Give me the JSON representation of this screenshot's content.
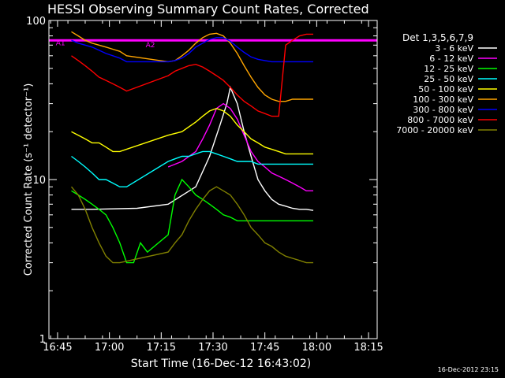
{
  "chart_data": {
    "type": "line",
    "title": "HESSI Observing Summary Count Rates, Corrected",
    "xlabel": "Start Time (16-Dec-12 16:43:02)",
    "ylabel": "Corrected Count Rate (s⁻¹ detector⁻¹)",
    "yscale": "log",
    "ylim": [
      1,
      100
    ],
    "xlim_minutes": [
      -0.5,
      94.5
    ],
    "x_ticks": [
      {
        "t": 2,
        "label": "16:45"
      },
      {
        "t": 17,
        "label": "17:00"
      },
      {
        "t": 32,
        "label": "17:15"
      },
      {
        "t": 47,
        "label": "17:30"
      },
      {
        "t": 62,
        "label": "17:45"
      },
      {
        "t": 77,
        "label": "18:00"
      },
      {
        "t": 92,
        "label": "18:15"
      }
    ],
    "y_ticks": [
      {
        "v": 1,
        "label": "1"
      },
      {
        "v": 10,
        "label": "10"
      },
      {
        "v": 100,
        "label": "100"
      }
    ],
    "legend_title": "Det 1,3,5,6,7,9",
    "legend_position": "right",
    "annotations": [
      {
        "text": "A1",
        "color": "#ff00ff",
        "t": 1.5,
        "v": 70
      },
      {
        "text": "A2",
        "color": "#ff00ff",
        "t": 27.5,
        "v": 68
      }
    ],
    "attenuator_level": 75,
    "series": [
      {
        "name": "3 - 6 keV",
        "color": "#ffffff",
        "points": [
          [
            6,
            6.5
          ],
          [
            12,
            6.5
          ],
          [
            25,
            6.6
          ],
          [
            34,
            7
          ],
          [
            42,
            9
          ],
          [
            46,
            14
          ],
          [
            49,
            22
          ],
          [
            51,
            30
          ],
          [
            52,
            38
          ],
          [
            54,
            30
          ],
          [
            56,
            20
          ],
          [
            58,
            14
          ],
          [
            60,
            10
          ],
          [
            62,
            8.5
          ],
          [
            64,
            7.5
          ],
          [
            66,
            7
          ],
          [
            68,
            6.8
          ],
          [
            70,
            6.6
          ],
          [
            72,
            6.5
          ],
          [
            74,
            6.5
          ],
          [
            76,
            6.4
          ]
        ]
      },
      {
        "name": "6 - 12 keV",
        "color": "#ff00ff",
        "points": [
          [
            34,
            12
          ],
          [
            38,
            13
          ],
          [
            42,
            15
          ],
          [
            44,
            18
          ],
          [
            46,
            22
          ],
          [
            48,
            28
          ],
          [
            50,
            30
          ],
          [
            52,
            28
          ],
          [
            54,
            24
          ],
          [
            56,
            19
          ],
          [
            58,
            15
          ],
          [
            60,
            13
          ],
          [
            62,
            12
          ],
          [
            64,
            11
          ],
          [
            66,
            10.5
          ],
          [
            68,
            10
          ],
          [
            70,
            9.5
          ],
          [
            72,
            9
          ],
          [
            74,
            8.5
          ],
          [
            76,
            8.5
          ]
        ]
      },
      {
        "name": "12 - 25 keV",
        "color": "#00ff00",
        "points": [
          [
            6,
            8.5
          ],
          [
            8,
            8
          ],
          [
            10,
            7.5
          ],
          [
            12,
            7
          ],
          [
            14,
            6.5
          ],
          [
            16,
            6
          ],
          [
            18,
            5
          ],
          [
            20,
            4
          ],
          [
            22,
            3
          ],
          [
            24,
            3
          ],
          [
            26,
            4
          ],
          [
            28,
            3.5
          ],
          [
            34,
            4.5
          ],
          [
            36,
            8
          ],
          [
            38,
            10
          ],
          [
            40,
            9
          ],
          [
            42,
            8
          ],
          [
            44,
            7.5
          ],
          [
            46,
            7
          ],
          [
            48,
            6.5
          ],
          [
            50,
            6
          ],
          [
            52,
            5.8
          ],
          [
            54,
            5.5
          ],
          [
            56,
            5.5
          ],
          [
            58,
            5.5
          ],
          [
            60,
            5.5
          ],
          [
            62,
            5.5
          ],
          [
            64,
            5.5
          ],
          [
            66,
            5.5
          ],
          [
            68,
            5.5
          ],
          [
            70,
            5.5
          ],
          [
            72,
            5.5
          ],
          [
            74,
            5.5
          ],
          [
            76,
            5.5
          ]
        ]
      },
      {
        "name": "25 - 50 keV",
        "color": "#00ffff",
        "points": [
          [
            6,
            14
          ],
          [
            8,
            13
          ],
          [
            10,
            12
          ],
          [
            12,
            11
          ],
          [
            14,
            10
          ],
          [
            16,
            10
          ],
          [
            18,
            9.5
          ],
          [
            20,
            9
          ],
          [
            22,
            9
          ],
          [
            34,
            13
          ],
          [
            36,
            13.5
          ],
          [
            38,
            14
          ],
          [
            40,
            14
          ],
          [
            42,
            14.5
          ],
          [
            44,
            15
          ],
          [
            46,
            15
          ],
          [
            48,
            14.5
          ],
          [
            50,
            14
          ],
          [
            52,
            13.5
          ],
          [
            54,
            13
          ],
          [
            56,
            13
          ],
          [
            58,
            13
          ],
          [
            60,
            12.5
          ],
          [
            62,
            12.5
          ],
          [
            64,
            12.5
          ],
          [
            66,
            12.5
          ],
          [
            68,
            12.5
          ],
          [
            70,
            12.5
          ],
          [
            72,
            12.5
          ],
          [
            74,
            12.5
          ],
          [
            76,
            12.5
          ]
        ]
      },
      {
        "name": "50 - 100 keV",
        "color": "#ffff00",
        "points": [
          [
            6,
            20
          ],
          [
            8,
            19
          ],
          [
            10,
            18
          ],
          [
            12,
            17
          ],
          [
            14,
            17
          ],
          [
            16,
            16
          ],
          [
            18,
            15
          ],
          [
            20,
            15
          ],
          [
            34,
            19
          ],
          [
            38,
            20
          ],
          [
            42,
            23
          ],
          [
            44,
            25
          ],
          [
            46,
            27
          ],
          [
            48,
            28
          ],
          [
            50,
            27
          ],
          [
            52,
            25
          ],
          [
            54,
            22
          ],
          [
            56,
            20
          ],
          [
            58,
            18
          ],
          [
            60,
            17
          ],
          [
            62,
            16
          ],
          [
            64,
            15.5
          ],
          [
            66,
            15
          ],
          [
            68,
            14.5
          ],
          [
            70,
            14.5
          ],
          [
            72,
            14.5
          ],
          [
            74,
            14.5
          ],
          [
            76,
            14.5
          ]
        ]
      },
      {
        "name": "100 - 300 keV",
        "color": "#ffa500",
        "points": [
          [
            6,
            85
          ],
          [
            8,
            80
          ],
          [
            10,
            75
          ],
          [
            12,
            72
          ],
          [
            14,
            70
          ],
          [
            16,
            68
          ],
          [
            18,
            66
          ],
          [
            20,
            64
          ],
          [
            22,
            60
          ],
          [
            34,
            55
          ],
          [
            36,
            56
          ],
          [
            38,
            60
          ],
          [
            40,
            65
          ],
          [
            42,
            72
          ],
          [
            44,
            78
          ],
          [
            46,
            82
          ],
          [
            48,
            83
          ],
          [
            50,
            80
          ],
          [
            52,
            72
          ],
          [
            54,
            62
          ],
          [
            56,
            52
          ],
          [
            58,
            44
          ],
          [
            60,
            38
          ],
          [
            62,
            34
          ],
          [
            64,
            32
          ],
          [
            66,
            31
          ],
          [
            68,
            31
          ],
          [
            70,
            32
          ],
          [
            72,
            32
          ],
          [
            74,
            32
          ],
          [
            76,
            32
          ]
        ]
      },
      {
        "name": "300 - 800 keV",
        "color": "#0000ff",
        "points": [
          [
            6,
            75
          ],
          [
            8,
            72
          ],
          [
            10,
            70
          ],
          [
            12,
            68
          ],
          [
            14,
            65
          ],
          [
            16,
            62
          ],
          [
            18,
            60
          ],
          [
            20,
            58
          ],
          [
            22,
            55
          ],
          [
            34,
            55
          ],
          [
            36,
            56
          ],
          [
            38,
            58
          ],
          [
            40,
            62
          ],
          [
            42,
            68
          ],
          [
            44,
            72
          ],
          [
            46,
            76
          ],
          [
            48,
            78
          ],
          [
            50,
            78
          ],
          [
            52,
            74
          ],
          [
            54,
            68
          ],
          [
            56,
            63
          ],
          [
            58,
            59
          ],
          [
            60,
            57
          ],
          [
            62,
            56
          ],
          [
            64,
            55
          ],
          [
            66,
            55
          ],
          [
            68,
            55
          ],
          [
            70,
            55
          ],
          [
            72,
            55
          ],
          [
            74,
            55
          ],
          [
            76,
            55
          ]
        ]
      },
      {
        "name": "800 - 7000 keV",
        "color": "#ff0000",
        "points": [
          [
            6,
            60
          ],
          [
            8,
            56
          ],
          [
            10,
            52
          ],
          [
            12,
            48
          ],
          [
            14,
            44
          ],
          [
            16,
            42
          ],
          [
            18,
            40
          ],
          [
            20,
            38
          ],
          [
            22,
            36
          ],
          [
            34,
            45
          ],
          [
            36,
            48
          ],
          [
            38,
            50
          ],
          [
            40,
            52
          ],
          [
            42,
            53
          ],
          [
            44,
            51
          ],
          [
            46,
            48
          ],
          [
            48,
            45
          ],
          [
            50,
            42
          ],
          [
            52,
            38
          ],
          [
            54,
            34
          ],
          [
            56,
            31
          ],
          [
            58,
            29
          ],
          [
            60,
            27
          ],
          [
            62,
            26
          ],
          [
            64,
            25
          ],
          [
            66,
            25
          ],
          [
            68,
            70
          ],
          [
            70,
            75
          ],
          [
            72,
            80
          ],
          [
            74,
            82
          ],
          [
            76,
            82
          ]
        ]
      },
      {
        "name": "7000 - 20000 keV",
        "color": "#808000",
        "points": [
          [
            6,
            9
          ],
          [
            8,
            8
          ],
          [
            10,
            6.5
          ],
          [
            12,
            5
          ],
          [
            14,
            4
          ],
          [
            16,
            3.3
          ],
          [
            18,
            3
          ],
          [
            20,
            3
          ],
          [
            34,
            3.5
          ],
          [
            36,
            4
          ],
          [
            38,
            4.5
          ],
          [
            40,
            5.5
          ],
          [
            42,
            6.5
          ],
          [
            44,
            7.5
          ],
          [
            46,
            8.5
          ],
          [
            48,
            9
          ],
          [
            50,
            8.5
          ],
          [
            52,
            8
          ],
          [
            54,
            7
          ],
          [
            56,
            6
          ],
          [
            58,
            5
          ],
          [
            60,
            4.5
          ],
          [
            62,
            4
          ],
          [
            64,
            3.8
          ],
          [
            66,
            3.5
          ],
          [
            68,
            3.3
          ],
          [
            70,
            3.2
          ],
          [
            72,
            3.1
          ],
          [
            74,
            3
          ],
          [
            76,
            3
          ]
        ]
      }
    ]
  },
  "footer": {
    "timestamp": "16-Dec-2012 23:15"
  }
}
